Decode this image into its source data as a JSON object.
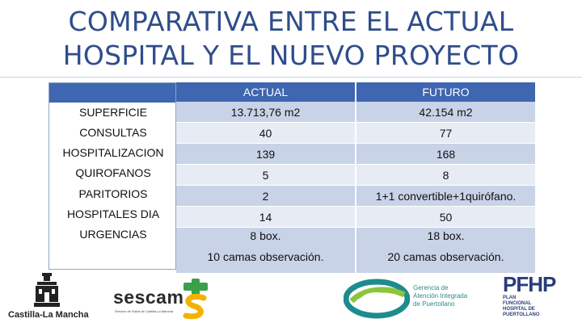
{
  "title": {
    "line1": "COMPARATIVA ENTRE EL ACTUAL",
    "line2": "HOSPITAL Y EL NUEVO PROYECTO"
  },
  "table": {
    "headers": [
      "ACTUAL",
      "FUTURO"
    ],
    "rows": [
      {
        "label": "SUPERFICIE",
        "actual": "13.713,76 m2",
        "futuro": "42.154 m2"
      },
      {
        "label": "CONSULTAS",
        "actual": "40",
        "futuro": "77"
      },
      {
        "label": "HOSPITALIZACION",
        "actual": "139",
        "futuro": "168"
      },
      {
        "label": "QUIROFANOS",
        "actual": "5",
        "futuro": "8"
      },
      {
        "label": "PARITORIOS",
        "actual": "2",
        "futuro": "1+1 convertible+1quirófano."
      },
      {
        "label": "HOSPITALES DIA",
        "actual": "14",
        "futuro": "50"
      },
      {
        "label": "URGENCIAS",
        "actual": "8 box.",
        "futuro": "18 box.",
        "actual_extra": "10 camas observación.",
        "futuro_extra": "20 camas observación."
      }
    ]
  },
  "logos": {
    "castilla": "Castilla-La Mancha",
    "sescam": "sescam",
    "sescam_sub": "Servicio de Salud de Castilla-La Mancha",
    "gerencia": [
      "Gerencia de",
      "Atención Integrada",
      "de Puertollano"
    ],
    "pfhp": "PFHP",
    "pfhp_sub": [
      "PLAN",
      "FUNCIONAL",
      "HOSPITAL DE",
      "PUERTOLLANO"
    ]
  },
  "colors": {
    "title": "#2f4d8a",
    "header_bg": "#3f66b0",
    "row_dark": "#c9d3e8",
    "row_light": "#e7ebf4"
  }
}
